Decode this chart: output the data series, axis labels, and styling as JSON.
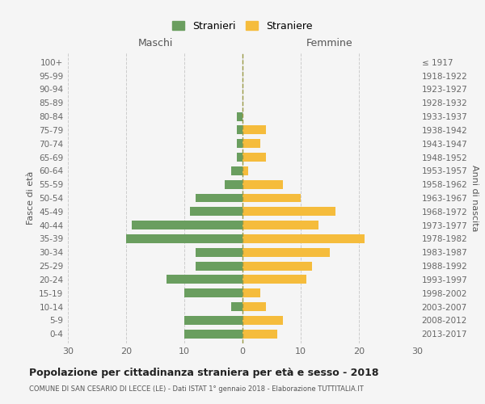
{
  "age_groups": [
    "100+",
    "95-99",
    "90-94",
    "85-89",
    "80-84",
    "75-79",
    "70-74",
    "65-69",
    "60-64",
    "55-59",
    "50-54",
    "45-49",
    "40-44",
    "35-39",
    "30-34",
    "25-29",
    "20-24",
    "15-19",
    "10-14",
    "5-9",
    "0-4"
  ],
  "birth_years": [
    "≤ 1917",
    "1918-1922",
    "1923-1927",
    "1928-1932",
    "1933-1937",
    "1938-1942",
    "1943-1947",
    "1948-1952",
    "1953-1957",
    "1958-1962",
    "1963-1967",
    "1968-1972",
    "1973-1977",
    "1978-1982",
    "1983-1987",
    "1988-1992",
    "1993-1997",
    "1998-2002",
    "2003-2007",
    "2008-2012",
    "2013-2017"
  ],
  "males": [
    0,
    0,
    0,
    0,
    1,
    1,
    1,
    1,
    2,
    3,
    8,
    9,
    19,
    20,
    8,
    8,
    13,
    10,
    2,
    10,
    10
  ],
  "females": [
    0,
    0,
    0,
    0,
    0,
    4,
    3,
    4,
    1,
    7,
    10,
    16,
    13,
    21,
    15,
    12,
    11,
    3,
    4,
    7,
    6
  ],
  "male_color": "#6a9e5f",
  "female_color": "#f5bc3c",
  "title": "Popolazione per cittadinanza straniera per età e sesso - 2018",
  "subtitle": "COMUNE DI SAN CESARIO DI LECCE (LE) - Dati ISTAT 1° gennaio 2018 - Elaborazione TUTTITALIA.IT",
  "xlabel_left": "Maschi",
  "xlabel_right": "Femmine",
  "ylabel_left": "Fasce di età",
  "ylabel_right": "Anni di nascita",
  "legend_male": "Stranieri",
  "legend_female": "Straniere",
  "xlim": 30,
  "background_color": "#f5f5f5",
  "grid_color": "#cccccc"
}
